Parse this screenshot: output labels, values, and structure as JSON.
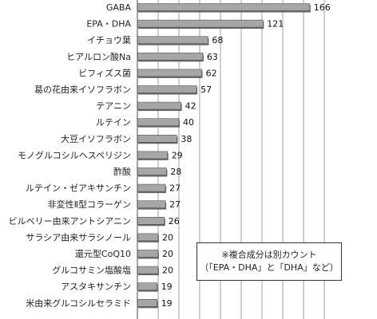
{
  "chart_data": {
    "type": "bar",
    "orientation": "horizontal",
    "categories": [
      "GABA",
      "EPA・DHA",
      "イチョウ葉",
      "ヒアルロン酸Na",
      "ビフィズス菌",
      "葛の花由来イソフラボン",
      "テアニン",
      "ルテイン",
      "大豆イソフラボン",
      "モノグルコシルヘスペリジン",
      "酢酸",
      "ルテイン・ゼアキサンチン",
      "非変性Ⅱ型コラーゲン",
      "ビルベリー由来アントシアニン",
      "サラシア由来サラシノール",
      "還元型CoQ10",
      "グルコサミン塩酸塩",
      "アスタキサンチン",
      "米由来グルコシルセラミド"
    ],
    "values": [
      166,
      121,
      68,
      63,
      62,
      57,
      42,
      40,
      38,
      29,
      28,
      27,
      27,
      26,
      20,
      20,
      20,
      19,
      19
    ],
    "value_labels": [
      "166",
      "121",
      "68",
      "63",
      "62",
      "57",
      "42",
      "40",
      "38",
      "29",
      "28",
      "27",
      "27",
      "26",
      "20",
      "20",
      "20",
      "19",
      "19"
    ],
    "xlim": [
      0,
      180
    ],
    "grid": true,
    "bar_color": "#a6a6a6",
    "bar_edge_color": "#555555"
  },
  "note": {
    "line1": "※複合成分は別カウント",
    "line2": "（「EPA・DHA」と「DHA」など）"
  }
}
